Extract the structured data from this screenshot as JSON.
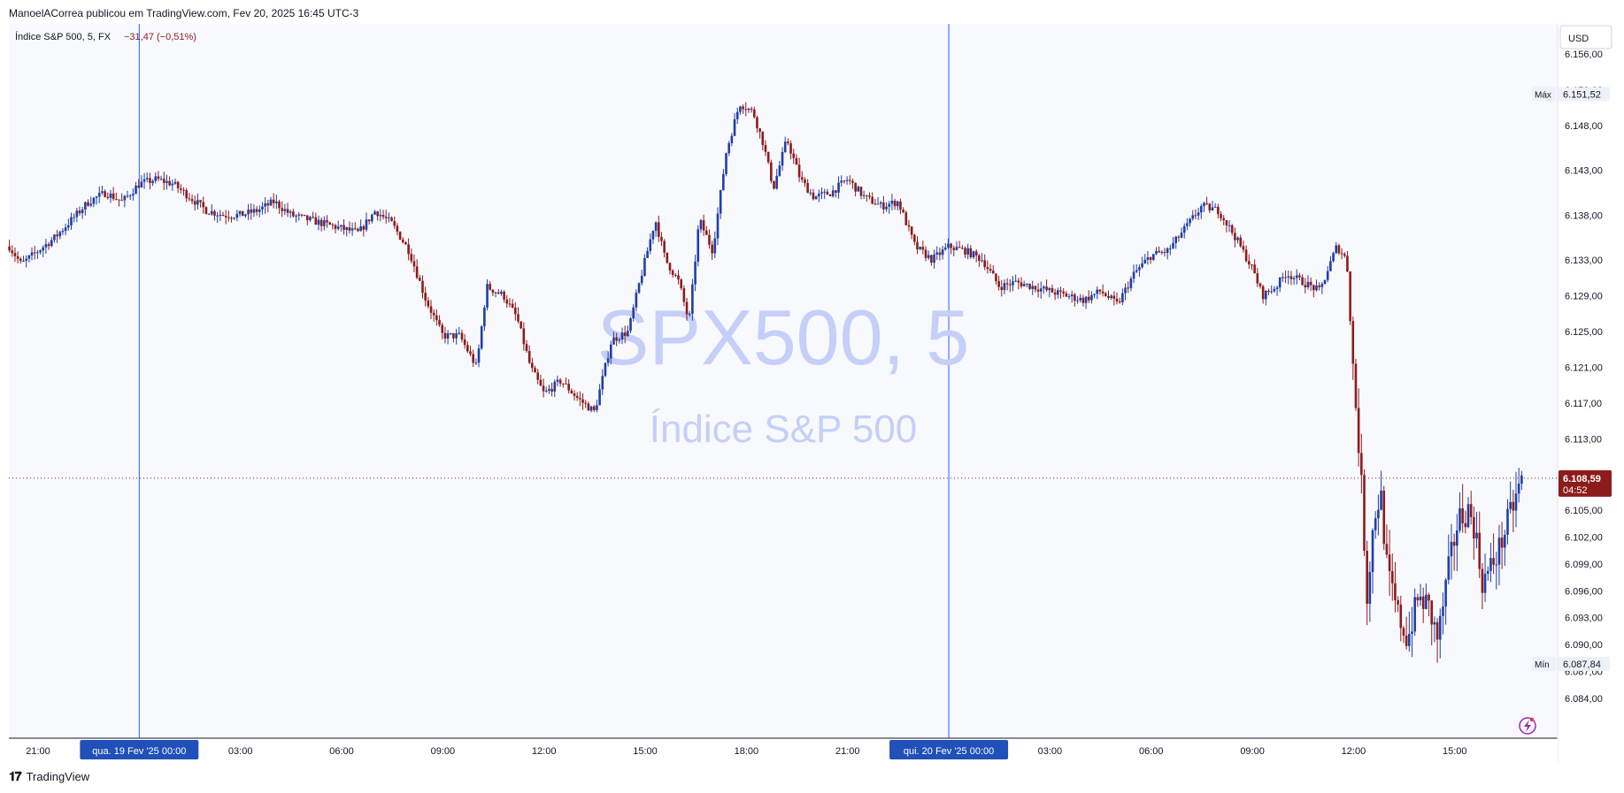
{
  "header": {
    "publisher_line": "ManoelACorrea publicou em TradingView.com, Fev 20, 2025 16:45 UTC-3"
  },
  "footer": {
    "logo_icon": "tradingview-logo-icon",
    "logo_text": "TradingView"
  },
  "legend": {
    "symbol_name": "Índice S&P 500, 5, FX",
    "change": "−31,47 (−0,51%)"
  },
  "watermark": {
    "symbol": "SPX500, 5",
    "description": "Índice S&P 500"
  },
  "colors": {
    "up": "#1e3fa6",
    "down": "#8c1c1c",
    "grid": "#e0e3eb",
    "separator": "#2962ff",
    "price_badge": "#8c1c1c",
    "time_badge": "#2050b8"
  },
  "chart_data": {
    "type": "candlestick",
    "currency": "USD",
    "ylim": [
      6082.0,
      6157.0
    ],
    "y_ticks": [
      {
        "value": 6084,
        "label": "6.084,00"
      },
      {
        "value": 6087,
        "label": "6.087,00"
      },
      {
        "value": 6090,
        "label": "6.090,00"
      },
      {
        "value": 6093,
        "label": "6.093,00"
      },
      {
        "value": 6096,
        "label": "6.096,00"
      },
      {
        "value": 6099,
        "label": "6.099,00"
      },
      {
        "value": 6102,
        "label": "6.102,00"
      },
      {
        "value": 6105,
        "label": "6.105,00"
      },
      {
        "value": 6113,
        "label": "6.113,00"
      },
      {
        "value": 6117,
        "label": "6.117,00"
      },
      {
        "value": 6121,
        "label": "6.121,00"
      },
      {
        "value": 6125,
        "label": "6.125,00"
      },
      {
        "value": 6129,
        "label": "6.129,00"
      },
      {
        "value": 6133,
        "label": "6.133,00"
      },
      {
        "value": 6138,
        "label": "6.138,00"
      },
      {
        "value": 6143,
        "label": "6.143,00"
      },
      {
        "value": 6148,
        "label": "6.148,00"
      },
      {
        "value": 6152,
        "label": "6.152,00"
      },
      {
        "value": 6156,
        "label": "6.156,00"
      }
    ],
    "x_ticks": [
      {
        "label": "21:00",
        "hours": -3
      },
      {
        "label": "03:00",
        "hours": 3
      },
      {
        "label": "06:00",
        "hours": 6
      },
      {
        "label": "09:00",
        "hours": 9
      },
      {
        "label": "12:00",
        "hours": 12
      },
      {
        "label": "15:00",
        "hours": 15
      },
      {
        "label": "18:00",
        "hours": 18
      },
      {
        "label": "21:00",
        "hours": 21
      },
      {
        "label": "03:00",
        "hours": 27
      },
      {
        "label": "06:00",
        "hours": 30
      },
      {
        "label": "09:00",
        "hours": 33
      },
      {
        "label": "12:00",
        "hours": 36
      },
      {
        "label": "15:00",
        "hours": 39
      }
    ],
    "x_range_hours": [
      -3.85,
      41.0
    ],
    "day_separators": [
      {
        "label": "qua. 19 Fev '25   00:00",
        "hours": 0
      },
      {
        "label": "qui. 20 Fev '25   00:00",
        "hours": 24
      }
    ],
    "max_marker": {
      "label": "Máx",
      "value": 6151.52,
      "text": "6.151,52"
    },
    "min_marker": {
      "label": "Mín",
      "value": 6087.84,
      "text": "6.087,84"
    },
    "last_price": {
      "value": 6108.59,
      "text": "6.108,59",
      "countdown": "04:52"
    },
    "price_path": [
      [
        -3.85,
        6134.5
      ],
      [
        -3.5,
        6132.5
      ],
      [
        -3.0,
        6134.0
      ],
      [
        -2.5,
        6135.5
      ],
      [
        -2.0,
        6137.5
      ],
      [
        -1.5,
        6139.5
      ],
      [
        -1.0,
        6140.5
      ],
      [
        -0.5,
        6139.5
      ],
      [
        0.0,
        6141.5
      ],
      [
        0.5,
        6142.0
      ],
      [
        1.0,
        6141.5
      ],
      [
        1.5,
        6140.0
      ],
      [
        2.0,
        6138.5
      ],
      [
        2.5,
        6138.0
      ],
      [
        3.0,
        6138.0
      ],
      [
        3.5,
        6138.5
      ],
      [
        4.0,
        6139.5
      ],
      [
        4.5,
        6138.0
      ],
      [
        5.0,
        6137.5
      ],
      [
        5.5,
        6137.0
      ],
      [
        6.0,
        6136.5
      ],
      [
        6.5,
        6136.0
      ],
      [
        7.0,
        6138.5
      ],
      [
        7.5,
        6137.0
      ],
      [
        8.0,
        6134.0
      ],
      [
        8.5,
        6128.5
      ],
      [
        9.0,
        6124.5
      ],
      [
        9.5,
        6124.5
      ],
      [
        10.0,
        6121.0
      ],
      [
        10.3,
        6130.0
      ],
      [
        10.8,
        6129.0
      ],
      [
        11.2,
        6126.5
      ],
      [
        11.6,
        6121.0
      ],
      [
        12.0,
        6118.0
      ],
      [
        12.5,
        6119.5
      ],
      [
        13.0,
        6117.5
      ],
      [
        13.5,
        6116.0
      ],
      [
        14.0,
        6124.0
      ],
      [
        14.5,
        6125.0
      ],
      [
        14.8,
        6130.0
      ],
      [
        15.0,
        6133.0
      ],
      [
        15.3,
        6137.5
      ],
      [
        15.6,
        6133.0
      ],
      [
        16.0,
        6130.5
      ],
      [
        16.3,
        6126.0
      ],
      [
        16.6,
        6137.5
      ],
      [
        17.0,
        6134.0
      ],
      [
        17.4,
        6145.0
      ],
      [
        17.8,
        6150.5
      ],
      [
        18.2,
        6149.5
      ],
      [
        18.5,
        6146.0
      ],
      [
        18.8,
        6141.0
      ],
      [
        19.2,
        6146.5
      ],
      [
        19.6,
        6142.0
      ],
      [
        20.0,
        6140.0
      ],
      [
        20.5,
        6140.5
      ],
      [
        21.0,
        6142.0
      ],
      [
        21.5,
        6140.0
      ],
      [
        22.0,
        6139.0
      ],
      [
        22.5,
        6139.5
      ],
      [
        23.0,
        6134.5
      ],
      [
        23.5,
        6133.0
      ],
      [
        24.0,
        6134.5
      ],
      [
        24.5,
        6134.0
      ],
      [
        25.0,
        6133.0
      ],
      [
        25.5,
        6130.0
      ],
      [
        26.0,
        6130.5
      ],
      [
        26.5,
        6130.0
      ],
      [
        27.0,
        6129.5
      ],
      [
        27.5,
        6129.0
      ],
      [
        28.0,
        6128.5
      ],
      [
        28.5,
        6129.5
      ],
      [
        29.0,
        6128.0
      ],
      [
        29.5,
        6131.5
      ],
      [
        30.0,
        6133.5
      ],
      [
        30.5,
        6134.0
      ],
      [
        31.0,
        6136.5
      ],
      [
        31.5,
        6139.0
      ],
      [
        32.0,
        6138.5
      ],
      [
        32.5,
        6135.5
      ],
      [
        33.0,
        6132.0
      ],
      [
        33.3,
        6129.0
      ],
      [
        33.7,
        6130.0
      ],
      [
        34.0,
        6131.5
      ],
      [
        34.5,
        6130.5
      ],
      [
        35.0,
        6129.5
      ],
      [
        35.5,
        6134.5
      ],
      [
        35.8,
        6133.0
      ],
      [
        36.0,
        6120.0
      ],
      [
        36.2,
        6110.0
      ],
      [
        36.4,
        6095.5
      ],
      [
        36.6,
        6104.0
      ],
      [
        36.8,
        6107.0
      ],
      [
        37.0,
        6098.0
      ],
      [
        37.3,
        6093.5
      ],
      [
        37.6,
        6090.5
      ],
      [
        37.9,
        6095.0
      ],
      [
        38.2,
        6094.5
      ],
      [
        38.5,
        6090.5
      ],
      [
        38.8,
        6098.0
      ],
      [
        39.1,
        6104.0
      ],
      [
        39.4,
        6105.0
      ],
      [
        39.6,
        6103.0
      ],
      [
        39.8,
        6097.0
      ],
      [
        40.0,
        6098.0
      ],
      [
        40.3,
        6100.5
      ],
      [
        40.6,
        6104.0
      ],
      [
        40.9,
        6107.5
      ],
      [
        41.0,
        6108.59
      ]
    ]
  }
}
